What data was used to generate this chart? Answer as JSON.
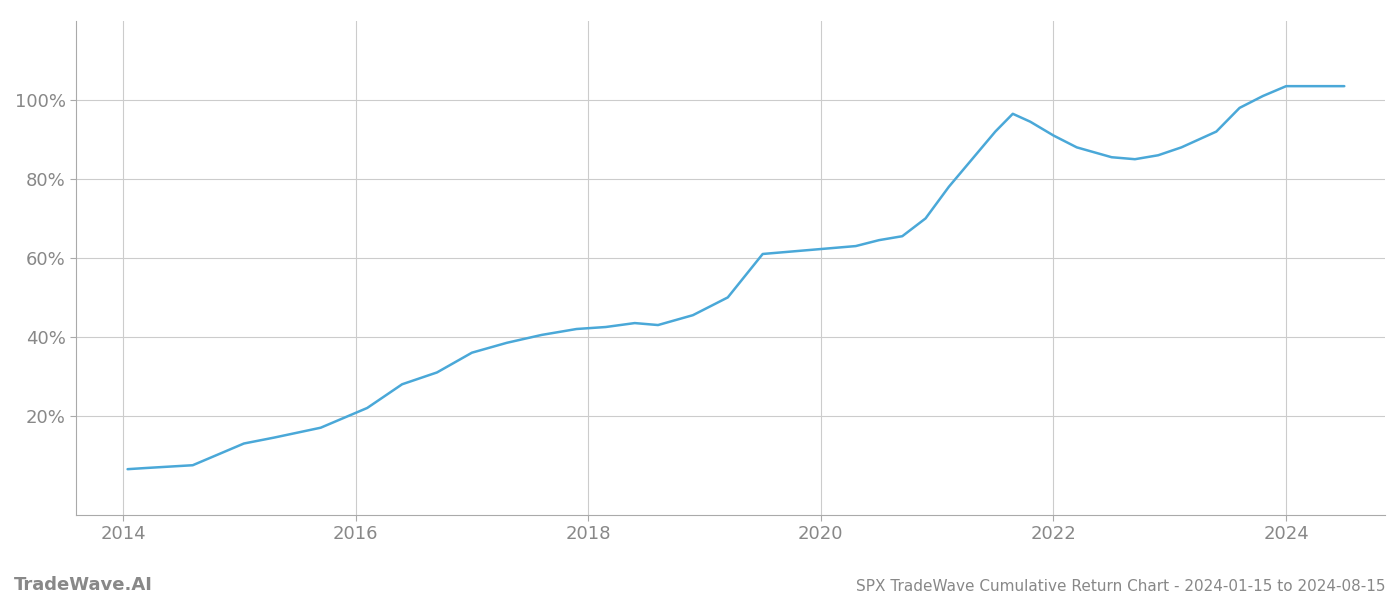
{
  "title": "SPX TradeWave Cumulative Return Chart - 2024-01-15 to 2024-08-15",
  "watermark": "TradeWave.AI",
  "line_color": "#4aa8d8",
  "line_width": 1.8,
  "background_color": "#ffffff",
  "grid_color": "#cccccc",
  "tick_color": "#888888",
  "data_x": [
    2014.04,
    2014.2,
    2014.6,
    2015.04,
    2015.3,
    2015.7,
    2016.1,
    2016.4,
    2016.7,
    2017.0,
    2017.3,
    2017.6,
    2017.9,
    2018.15,
    2018.4,
    2018.6,
    2018.9,
    2019.2,
    2019.5,
    2019.7,
    2019.9,
    2020.1,
    2020.3,
    2020.5,
    2020.7,
    2020.9,
    2021.1,
    2021.3,
    2021.5,
    2021.65,
    2021.8,
    2022.0,
    2022.2,
    2022.5,
    2022.7,
    2022.9,
    2023.1,
    2023.4,
    2023.6,
    2023.8,
    2024.0,
    2024.5
  ],
  "data_y": [
    6.5,
    6.8,
    7.5,
    13.0,
    14.5,
    17.0,
    22.0,
    28.0,
    31.0,
    36.0,
    38.5,
    40.5,
    42.0,
    42.5,
    43.5,
    43.0,
    45.5,
    50.0,
    61.0,
    61.5,
    62.0,
    62.5,
    63.0,
    64.5,
    65.5,
    70.0,
    78.0,
    85.0,
    92.0,
    96.5,
    94.5,
    91.0,
    88.0,
    85.5,
    85.0,
    86.0,
    88.0,
    92.0,
    98.0,
    101.0,
    103.5,
    103.5
  ],
  "ylim": [
    -5,
    120
  ],
  "xlim": [
    2013.6,
    2024.85
  ],
  "yticks": [
    20,
    40,
    60,
    80,
    100
  ],
  "xticks": [
    2014,
    2016,
    2018,
    2020,
    2022,
    2024
  ],
  "title_fontsize": 11,
  "tick_fontsize": 13,
  "watermark_fontsize": 13,
  "spine_color": "#aaaaaa"
}
